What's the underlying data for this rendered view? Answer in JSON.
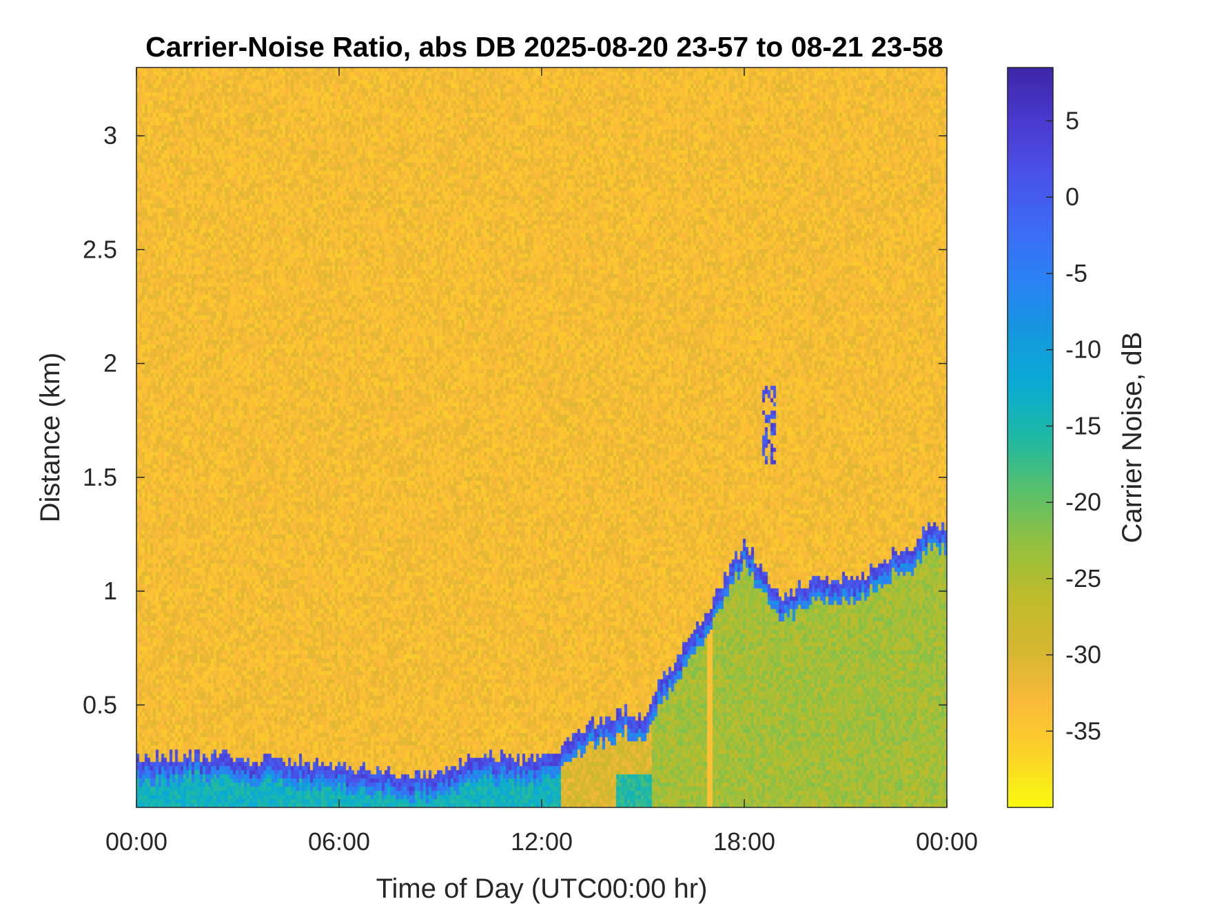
{
  "chart_data": {
    "type": "heatmap",
    "title": "Carrier-Noise Ratio, abs DB 2025-08-20 23-57 to 08-21 23-58",
    "xlabel": "Time of Day (UTC00:00 hr)",
    "ylabel": "Distance (km)",
    "colorbar_label": "Carrier Noise, dB",
    "x_ticks": [
      "00:00",
      "06:00",
      "12:00",
      "18:00",
      "00:00"
    ],
    "x_tick_hours": [
      0,
      6,
      12,
      18,
      24
    ],
    "xlim_hours": [
      0,
      24
    ],
    "y_ticks": [
      "0.5",
      "1",
      "1.5",
      "2",
      "2.5",
      "3"
    ],
    "y_tick_values": [
      0.5,
      1,
      1.5,
      2,
      2.5,
      3
    ],
    "ylim_km": [
      0.05,
      3.3
    ],
    "colorbar_ticks": [
      "5",
      "0",
      "-5",
      "-10",
      "-15",
      "-20",
      "-25",
      "-30",
      "-35"
    ],
    "colorbar_tick_values": [
      5,
      0,
      -5,
      -10,
      -15,
      -20,
      -25,
      -30,
      -35
    ],
    "clim_db": [
      -40,
      8.5
    ],
    "background_level_db": -33,
    "colormap": "parula",
    "colormap_stops": [
      "#f9fb0e",
      "#fbd427",
      "#fbba3a",
      "#d6b731",
      "#bfbc2b",
      "#93c141",
      "#59c06b",
      "#1fb9a4",
      "#0bacd4",
      "#1598df",
      "#2b82f6",
      "#3e6bf5",
      "#4a52ea",
      "#4a3ad0",
      "#3e26a8"
    ],
    "boundary_layer": {
      "description_time_hours": [
        0,
        1,
        2,
        3,
        4,
        5,
        6,
        7,
        8,
        9,
        10,
        11,
        12,
        12.8,
        13.5,
        14,
        14.5,
        15,
        15.5,
        16,
        16.5,
        17,
        17.5,
        18,
        18.5,
        19,
        19.5,
        20,
        20.5,
        21,
        21.5,
        22,
        22.5,
        23,
        23.5,
        24
      ],
      "top_height_km": [
        0.27,
        0.27,
        0.28,
        0.26,
        0.26,
        0.25,
        0.23,
        0.22,
        0.2,
        0.19,
        0.27,
        0.27,
        0.27,
        0.35,
        0.42,
        0.44,
        0.48,
        0.45,
        0.6,
        0.7,
        0.82,
        0.95,
        1.08,
        1.22,
        1.1,
        0.98,
        1.0,
        1.05,
        1.06,
        1.06,
        1.07,
        1.12,
        1.18,
        1.2,
        1.3,
        1.28
      ],
      "band_level_db": 2,
      "below_level_db": -14
    },
    "cloud_patch": {
      "time_hours": [
        18.5,
        18.95
      ],
      "height_km": [
        1.55,
        1.9
      ],
      "level_db": 2
    },
    "streak_hours": 17.0
  }
}
